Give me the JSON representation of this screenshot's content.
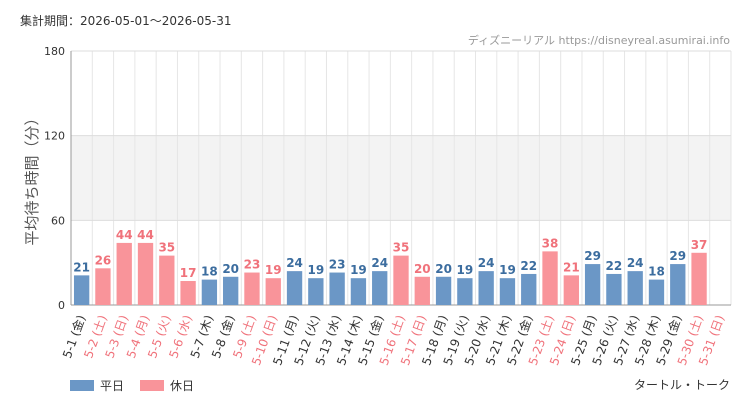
{
  "header": {
    "period_label": "集計期間：2026-05-01〜2026-05-31",
    "watermark": "ディズニーリアル https://disneyreal.asumirai.info"
  },
  "footer": {
    "label": "タートル・トーク"
  },
  "legend": {
    "placement": "bottom-left",
    "items": [
      {
        "name": "平日",
        "color": "#6b97c6"
      },
      {
        "name": "休日",
        "color": "#f9949a"
      }
    ]
  },
  "chart_data": {
    "type": "bar",
    "ylabel": "平均待ち時間（分）",
    "ylim": [
      0,
      180
    ],
    "yticks": [
      "0",
      "60",
      "120",
      "180"
    ],
    "grid": true,
    "shaded_band": [
      60,
      120
    ],
    "colors": {
      "weekday": "#6b97c6",
      "holiday": "#f9949a",
      "holiday_text": "#f0727b",
      "weekday_text": "#3c6d9f"
    },
    "categories": [
      "5-1 (金)",
      "5-2 (土)",
      "5-3 (日)",
      "5-4 (月)",
      "5-5 (火)",
      "5-6 (水)",
      "5-7 (木)",
      "5-8 (金)",
      "5-9 (土)",
      "5-10 (日)",
      "5-11 (月)",
      "5-12 (火)",
      "5-13 (水)",
      "5-14 (木)",
      "5-15 (金)",
      "5-16 (土)",
      "5-17 (日)",
      "5-18 (月)",
      "5-19 (火)",
      "5-20 (水)",
      "5-21 (木)",
      "5-22 (金)",
      "5-23 (土)",
      "5-24 (日)",
      "5-25 (月)",
      "5-26 (火)",
      "5-27 (水)",
      "5-28 (木)",
      "5-29 (金)",
      "5-30 (土)",
      "5-31 (日)"
    ],
    "values": [
      21,
      26,
      44,
      44,
      35,
      17,
      18,
      20,
      23,
      19,
      24,
      19,
      23,
      19,
      24,
      35,
      20,
      20,
      19,
      24,
      19,
      22,
      38,
      21,
      29,
      22,
      24,
      18,
      29,
      37,
      null
    ],
    "day_type": [
      "weekday",
      "holiday",
      "holiday",
      "holiday",
      "holiday",
      "holiday",
      "weekday",
      "weekday",
      "holiday",
      "holiday",
      "weekday",
      "weekday",
      "weekday",
      "weekday",
      "weekday",
      "holiday",
      "holiday",
      "weekday",
      "weekday",
      "weekday",
      "weekday",
      "weekday",
      "holiday",
      "holiday",
      "weekday",
      "weekday",
      "weekday",
      "weekday",
      "weekday",
      "holiday",
      "holiday"
    ]
  }
}
